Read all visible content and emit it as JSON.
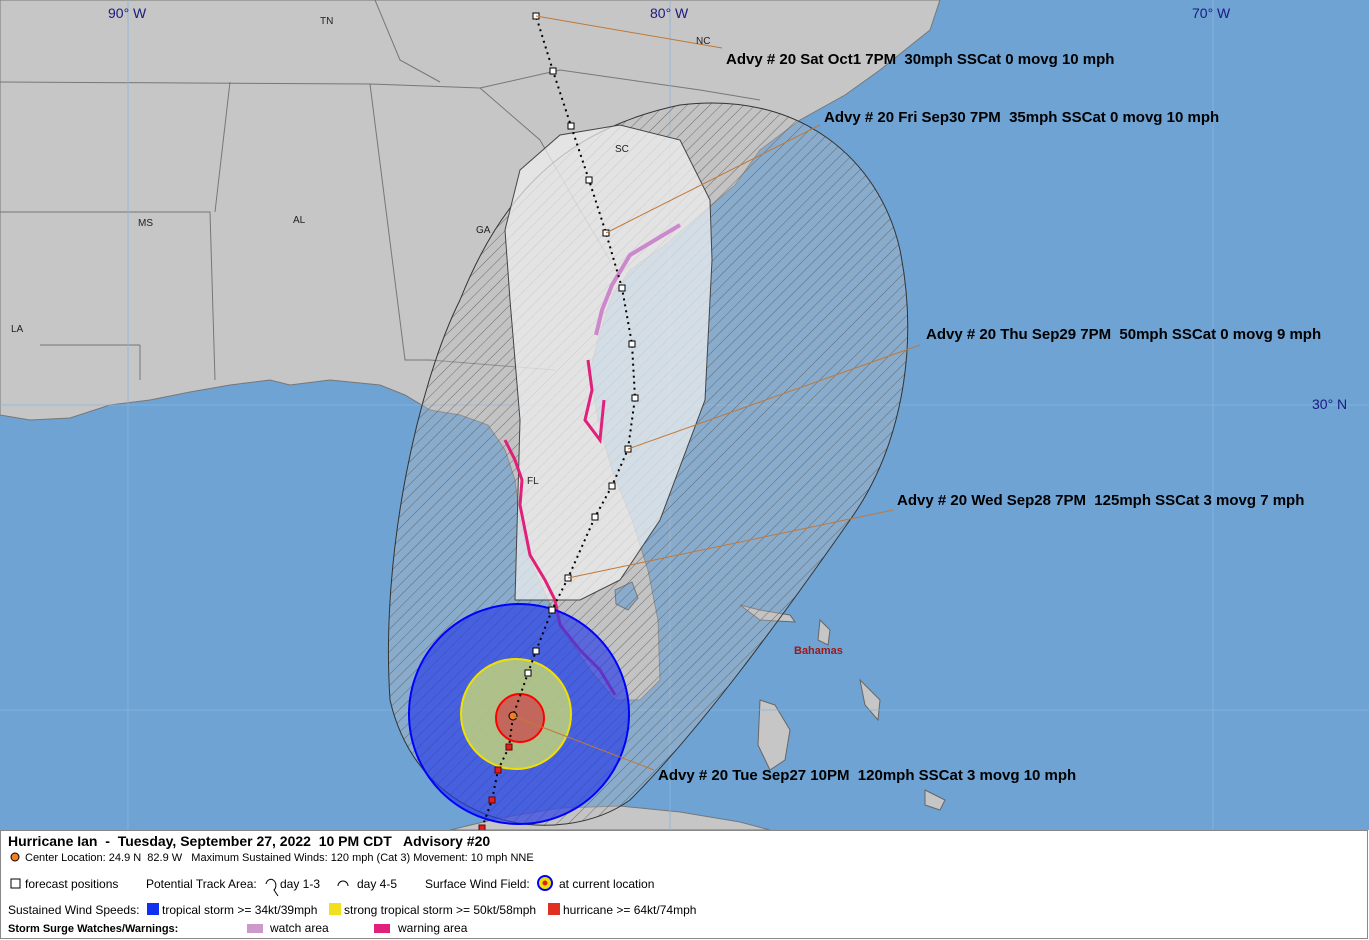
{
  "map": {
    "grid_labels": [
      "90° W",
      "80° W",
      "70° W",
      "30° N"
    ],
    "states": [
      "TN",
      "NC",
      "SC",
      "GA",
      "MS",
      "AL",
      "LA",
      "FL"
    ],
    "place": "Bahamas",
    "advisories": [
      "Advy # 20 Sat Oct1 7PM  30mph SSCat 0 movg 10 mph",
      "Advy # 20 Fri Sep30 7PM  35mph SSCat 0 movg 10 mph",
      "Advy # 20 Thu Sep29 7PM  50mph SSCat 0 movg 9 mph",
      "Advy # 20 Wed Sep28 7PM  125mph SSCat 3 movg 7 mph",
      "Advy # 20 Tue Sep27 10PM  120mph SSCat 3 movg 10 mph"
    ]
  },
  "legend": {
    "title": "Hurricane Ian  -  Tuesday, September 27, 2022  10 PM CDT   Advisory #20",
    "center": "Center Location: 24.9 N  82.9 W   Maximum Sustained Winds: 120 mph (Cat 3) Movement: 10 mph NNE",
    "forecast": "forecast positions",
    "track_area": "Potential Track Area:",
    "day13": "day 1-3",
    "day45": "day 4-5",
    "wind_field": "Surface Wind Field:",
    "current": "at current location",
    "speeds": "Sustained Wind Speeds:",
    "ts": "tropical storm >= 34kt/39mph",
    "sts": "strong tropical storm >= 50kt/58mph",
    "hu": "hurricane >= 64kt/74mph",
    "surge": "Storm Surge Watches/Warnings:",
    "watch": "watch area",
    "warning": "warning area"
  }
}
